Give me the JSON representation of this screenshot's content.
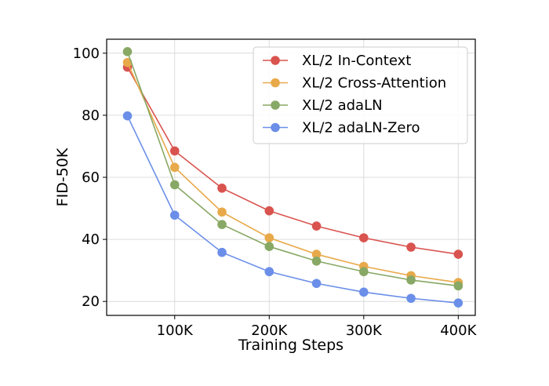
{
  "chart_data": {
    "type": "line",
    "xlabel": "Training Steps",
    "ylabel": "FID-50K",
    "x": [
      50000,
      100000,
      150000,
      200000,
      250000,
      300000,
      350000,
      400000
    ],
    "xticks": [
      100000,
      200000,
      300000,
      400000
    ],
    "xtick_labels": [
      "100K",
      "200K",
      "300K",
      "400K"
    ],
    "yticks": [
      20,
      40,
      60,
      80,
      100
    ],
    "ytick_labels": [
      "20",
      "40",
      "60",
      "80",
      "100"
    ],
    "xlim": [
      28000,
      418000
    ],
    "ylim": [
      15.5,
      104.5
    ],
    "grid": true,
    "legend_position": "top-right",
    "series": [
      {
        "name": "XL/2 In-Context",
        "color": "#d9534f",
        "values": [
          95.5,
          68.5,
          56.5,
          49.2,
          44.3,
          40.5,
          37.5,
          35.2
        ]
      },
      {
        "name": "XL/2 Cross-Attention",
        "color": "#e8a94a",
        "values": [
          97.0,
          63.2,
          48.8,
          40.5,
          35.2,
          31.3,
          28.3,
          26.1
        ]
      },
      {
        "name": "XL/2 adaLN",
        "color": "#88a865",
        "values": [
          100.5,
          57.6,
          44.8,
          37.7,
          33.0,
          29.6,
          26.9,
          25.0
        ]
      },
      {
        "name": "XL/2 adaLN-Zero",
        "color": "#6b8fe8",
        "values": [
          79.8,
          47.8,
          35.8,
          29.6,
          25.8,
          23.0,
          21.0,
          19.5
        ]
      }
    ]
  }
}
